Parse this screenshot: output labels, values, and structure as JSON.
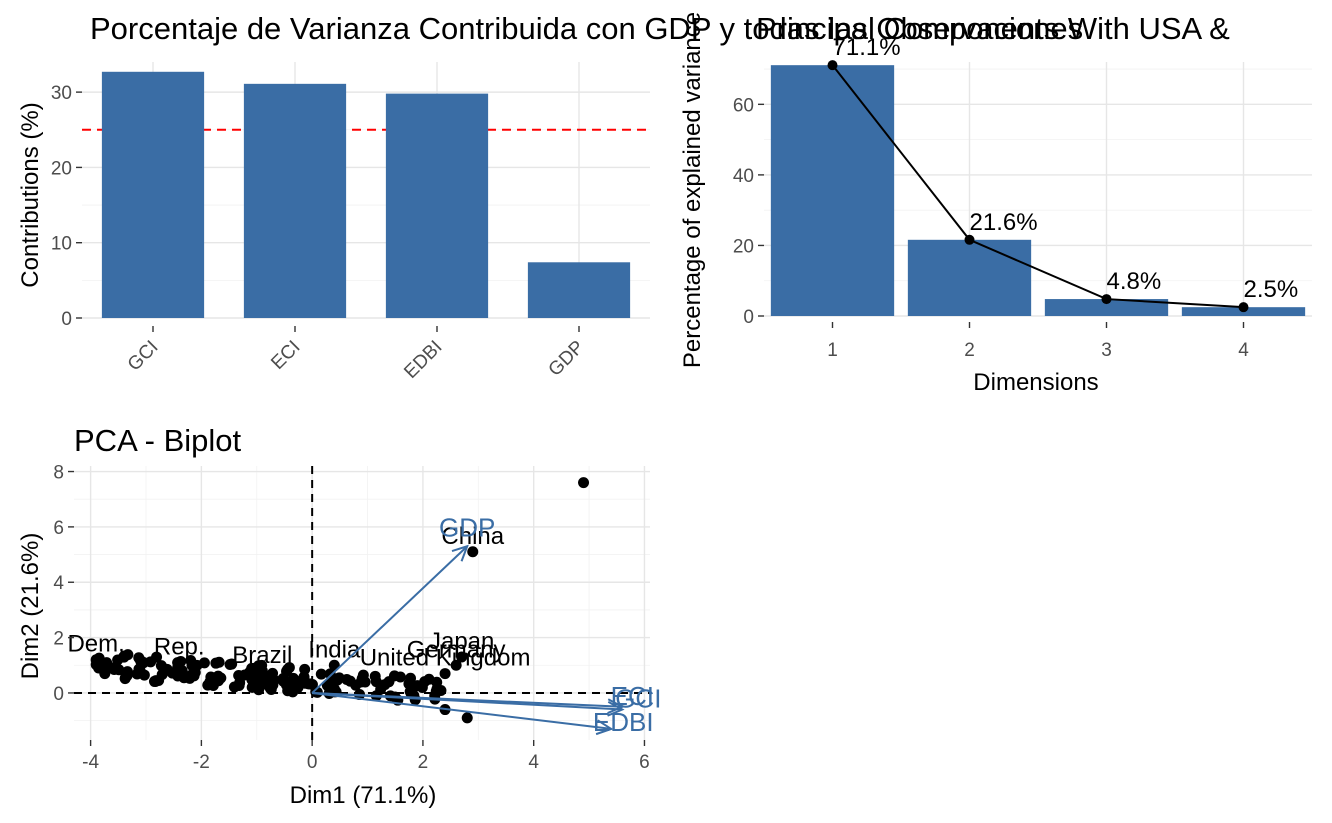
{
  "chart_data": [
    {
      "type": "bar",
      "title": "Porcentaje de Varianza Contribuida con GDP y todas las Observaciones",
      "xlabel": "",
      "ylabel": "Contributions (%)",
      "categories": [
        "GCI",
        "ECI",
        "EDBI",
        "GDP"
      ],
      "values": [
        32.7,
        31.1,
        29.8,
        7.4
      ],
      "reference_line": 25,
      "reference_line_color": "#ff0000",
      "ylim": [
        0,
        34
      ],
      "yticks": [
        0,
        10,
        20,
        30
      ],
      "bar_color": "#3a6da5",
      "grid": true
    },
    {
      "type": "bar",
      "title": "Principal Components With USA &",
      "xlabel": "Dimensions",
      "ylabel": "Percentage of explained variance",
      "categories": [
        "1",
        "2",
        "3",
        "4"
      ],
      "values": [
        71.1,
        21.6,
        4.8,
        2.5
      ],
      "value_labels": [
        "71.1%",
        "21.6%",
        "4.8%",
        "2.5%"
      ],
      "line_overlay": true,
      "ylim": [
        0,
        72
      ],
      "yticks": [
        0,
        20,
        40,
        60
      ],
      "bar_color": "#3a6da5",
      "grid": true
    },
    {
      "type": "scatter",
      "title": "PCA - Biplot",
      "xlabel": "Dim1 (71.1%)",
      "ylabel": "Dim2 (21.6%)",
      "xlim": [
        -4.3,
        6.1
      ],
      "ylim": [
        -1.7,
        8.2
      ],
      "xticks": [
        -4,
        -2,
        0,
        2,
        4,
        6
      ],
      "yticks": [
        0,
        2,
        4,
        6,
        8
      ],
      "labeled_points": [
        {
          "label": "China",
          "x": 2.9,
          "y": 5.1
        },
        {
          "label": "Japan",
          "x": 2.7,
          "y": 1.3
        },
        {
          "label": "Germany",
          "x": 2.6,
          "y": 1.0
        },
        {
          "label": "United Kingdom",
          "x": 2.4,
          "y": 0.7
        },
        {
          "label": "India",
          "x": 0.4,
          "y": 1.0
        },
        {
          "label": "Brazil",
          "x": -0.9,
          "y": 0.8
        },
        {
          "label": "Rep.",
          "x": -2.4,
          "y": 1.1
        },
        {
          "label": "Dem.",
          "x": -3.9,
          "y": 1.2
        }
      ],
      "unlabeled_points": [
        {
          "x": 4.9,
          "y": 7.6
        },
        {
          "x": 2.8,
          "y": -0.9
        },
        {
          "x": 2.4,
          "y": -0.6
        }
      ],
      "variables": [
        {
          "name": "GDP",
          "x": 2.8,
          "y": 5.3
        },
        {
          "name": "GCI",
          "x": 5.6,
          "y": -0.6
        },
        {
          "name": "ECI",
          "x": 5.6,
          "y": -0.5
        },
        {
          "name": "EDBI",
          "x": 5.4,
          "y": -1.3
        }
      ],
      "arrow_color": "#3a6da5",
      "origin_lines": true
    }
  ]
}
